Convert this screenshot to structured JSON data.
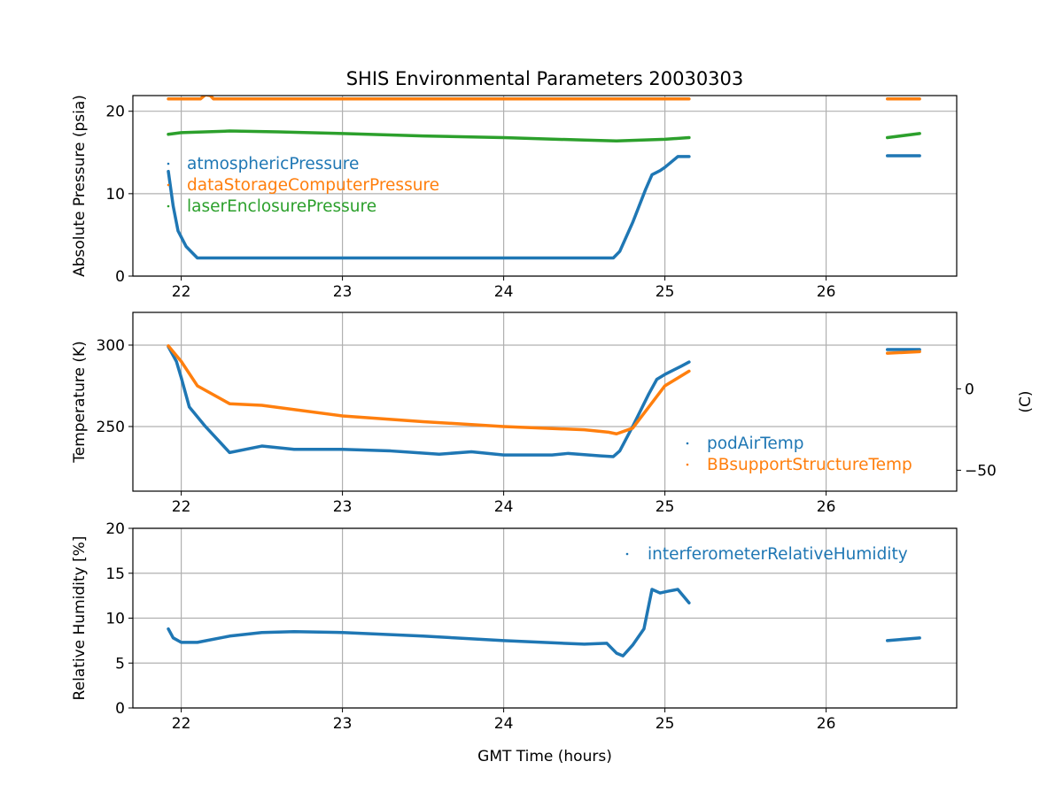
{
  "chart_data": {
    "type": "scatter",
    "title": "SHIS Environmental Parameters 20030303",
    "xlabel": "GMT Time (hours)",
    "xlim": [
      21.7,
      26.81
    ],
    "xticks": [
      22,
      23,
      24,
      25,
      26
    ],
    "grid": true,
    "panels": [
      {
        "ylabel": "Absolute Pressure (psia)",
        "ylim": [
          0,
          21.9
        ],
        "yticks": [
          0,
          10,
          20
        ],
        "legend_placement": "upper-left",
        "series": [
          {
            "name": "atmosphericPressure",
            "color": "#1f77b4",
            "segments": [
              [
                [
                  21.92,
                  12.7
                ],
                [
                  21.95,
                  8.5
                ],
                [
                  21.98,
                  5.5
                ],
                [
                  22.03,
                  3.6
                ],
                [
                  22.1,
                  2.2
                ],
                [
                  24.68,
                  2.2
                ],
                [
                  24.72,
                  3.0
                ],
                [
                  24.8,
                  6.5
                ],
                [
                  24.88,
                  10.5
                ],
                [
                  24.92,
                  12.3
                ],
                [
                  24.97,
                  12.8
                ],
                [
                  25.0,
                  13.2
                ],
                [
                  25.08,
                  14.5
                ],
                [
                  25.15,
                  14.5
                ]
              ],
              [
                [
                  26.38,
                  14.6
                ],
                [
                  26.58,
                  14.6
                ]
              ]
            ]
          },
          {
            "name": "dataStorageComputerPressure",
            "color": "#ff7f0e",
            "segments": [
              [
                [
                  21.92,
                  21.5
                ],
                [
                  22.12,
                  21.5
                ],
                [
                  22.15,
                  22.0
                ],
                [
                  22.18,
                  21.9
                ],
                [
                  22.2,
                  21.5
                ],
                [
                  25.15,
                  21.5
                ]
              ],
              [
                [
                  26.38,
                  21.5
                ],
                [
                  26.58,
                  21.5
                ]
              ]
            ]
          },
          {
            "name": "laserEnclosurePressure",
            "color": "#2ca02c",
            "segments": [
              [
                [
                  21.92,
                  17.2
                ],
                [
                  22.0,
                  17.4
                ],
                [
                  22.3,
                  17.6
                ],
                [
                  22.6,
                  17.5
                ],
                [
                  23.0,
                  17.3
                ],
                [
                  23.5,
                  17.0
                ],
                [
                  24.0,
                  16.8
                ],
                [
                  24.5,
                  16.5
                ],
                [
                  24.7,
                  16.4
                ],
                [
                  25.0,
                  16.6
                ],
                [
                  25.15,
                  16.8
                ]
              ],
              [
                [
                  26.38,
                  16.8
                ],
                [
                  26.58,
                  17.3
                ]
              ]
            ]
          }
        ]
      },
      {
        "ylabel": "Temperature (K)",
        "ylim": [
          210.3,
          320.1
        ],
        "yticks": [
          250,
          300
        ],
        "right_ylabel": "(C)",
        "right_yticks": [
          0,
          -50
        ],
        "legend_placement": "lower-right",
        "series": [
          {
            "name": "podAirTemp",
            "color": "#1f77b4",
            "segments": [
              [
                [
                  21.92,
                  299
                ],
                [
                  21.97,
                  290
                ],
                [
                  22.0,
                  280
                ],
                [
                  22.05,
                  262
                ],
                [
                  22.15,
                  250
                ],
                [
                  22.3,
                  234
                ],
                [
                  22.5,
                  238
                ],
                [
                  22.7,
                  236
                ],
                [
                  23.0,
                  236
                ],
                [
                  23.3,
                  235
                ],
                [
                  23.6,
                  233
                ],
                [
                  23.8,
                  234.5
                ],
                [
                  24.0,
                  232.5
                ],
                [
                  24.3,
                  232.5
                ],
                [
                  24.4,
                  233.5
                ],
                [
                  24.6,
                  232
                ],
                [
                  24.68,
                  231.5
                ],
                [
                  24.72,
                  235
                ],
                [
                  24.8,
                  250
                ],
                [
                  24.9,
                  270
                ],
                [
                  24.95,
                  279
                ],
                [
                  25.0,
                  282
                ],
                [
                  25.1,
                  287
                ],
                [
                  25.15,
                  289.6
                ]
              ],
              [
                [
                  26.38,
                  297.3
                ],
                [
                  26.58,
                  297.3
                ]
              ]
            ]
          },
          {
            "name": "BBsupportStructureTemp",
            "color": "#ff7f0e",
            "segments": [
              [
                [
                  21.92,
                  299.5
                ],
                [
                  22.0,
                  290
                ],
                [
                  22.1,
                  275
                ],
                [
                  22.3,
                  264
                ],
                [
                  22.5,
                  263
                ],
                [
                  23.0,
                  256.5
                ],
                [
                  23.5,
                  253
                ],
                [
                  24.0,
                  250
                ],
                [
                  24.5,
                  248
                ],
                [
                  24.65,
                  246.5
                ],
                [
                  24.7,
                  245.5
                ],
                [
                  24.8,
                  249
                ],
                [
                  24.9,
                  262
                ],
                [
                  25.0,
                  275
                ],
                [
                  25.15,
                  284
                ]
              ],
              [
                [
                  26.38,
                  295
                ],
                [
                  26.58,
                  296
                ]
              ]
            ]
          }
        ]
      },
      {
        "ylabel": "Relative Humidity [%]",
        "ylim": [
          0,
          20
        ],
        "yticks": [
          0,
          5,
          10,
          15,
          20
        ],
        "legend_placement": "upper-right",
        "series": [
          {
            "name": "interferometerRelativeHumidity",
            "color": "#1f77b4",
            "segments": [
              [
                [
                  21.92,
                  8.8
                ],
                [
                  21.95,
                  7.8
                ],
                [
                  22.0,
                  7.3
                ],
                [
                  22.1,
                  7.3
                ],
                [
                  22.3,
                  8.0
                ],
                [
                  22.5,
                  8.4
                ],
                [
                  22.7,
                  8.5
                ],
                [
                  23.0,
                  8.4
                ],
                [
                  23.5,
                  8.0
                ],
                [
                  24.0,
                  7.5
                ],
                [
                  24.5,
                  7.1
                ],
                [
                  24.64,
                  7.2
                ],
                [
                  24.7,
                  6.1
                ],
                [
                  24.74,
                  5.8
                ],
                [
                  24.8,
                  7.0
                ],
                [
                  24.87,
                  8.8
                ],
                [
                  24.92,
                  13.2
                ],
                [
                  24.97,
                  12.8
                ],
                [
                  25.02,
                  13.0
                ],
                [
                  25.08,
                  13.2
                ],
                [
                  25.15,
                  11.7
                ]
              ],
              [
                [
                  26.38,
                  7.5
                ],
                [
                  26.58,
                  7.8
                ]
              ]
            ]
          }
        ]
      }
    ]
  }
}
